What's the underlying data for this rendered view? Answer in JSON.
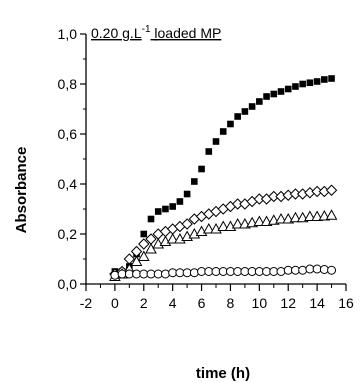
{
  "chart_data": {
    "type": "scatter",
    "title": "0.20 g.L",
    "title_superscript": "-1",
    "title_suffix": " loaded MP",
    "xlabel": "time (h)",
    "ylabel": "Absorbance",
    "xlim": [
      -2,
      16
    ],
    "ylim": [
      0,
      1.0
    ],
    "x_ticks": [
      -2,
      0,
      2,
      4,
      6,
      8,
      10,
      12,
      14,
      16
    ],
    "x_tick_labels": [
      "-2",
      "0",
      "2",
      "4",
      "6",
      "8",
      "10",
      "12",
      "14",
      "16"
    ],
    "y_ticks": [
      0,
      0.2,
      0.4,
      0.6,
      0.8,
      1.0
    ],
    "y_tick_labels": [
      "0,0",
      "0,2",
      "0,4",
      "0,6",
      "0,8",
      "1,0"
    ],
    "grid": false,
    "series": [
      {
        "marker": "filled-square",
        "x": [
          0,
          0.5,
          1,
          1.5,
          2,
          2.5,
          3,
          3.5,
          4,
          4.5,
          5,
          5.5,
          6,
          6.5,
          7,
          7.5,
          8,
          8.5,
          9,
          9.5,
          10,
          10.5,
          11,
          11.5,
          12,
          12.5,
          13,
          13.5,
          14,
          14.5,
          15
        ],
        "y": [
          0.05,
          0.05,
          0.07,
          0.12,
          0.2,
          0.26,
          0.29,
          0.3,
          0.31,
          0.33,
          0.36,
          0.41,
          0.46,
          0.53,
          0.57,
          0.61,
          0.64,
          0.67,
          0.69,
          0.71,
          0.73,
          0.75,
          0.76,
          0.77,
          0.78,
          0.79,
          0.8,
          0.805,
          0.81,
          0.818,
          0.822
        ]
      },
      {
        "marker": "open-diamond",
        "x": [
          0,
          0.5,
          1,
          1.5,
          2,
          2.5,
          3,
          3.5,
          4,
          4.5,
          5,
          5.5,
          6,
          6.5,
          7,
          7.5,
          8,
          8.5,
          9,
          9.5,
          10,
          10.5,
          11,
          11.5,
          12,
          12.5,
          13,
          13.5,
          14,
          14.5,
          15
        ],
        "y": [
          0.04,
          0.05,
          0.1,
          0.13,
          0.16,
          0.18,
          0.2,
          0.21,
          0.22,
          0.23,
          0.24,
          0.26,
          0.27,
          0.28,
          0.29,
          0.3,
          0.31,
          0.32,
          0.32,
          0.33,
          0.34,
          0.34,
          0.35,
          0.35,
          0.355,
          0.36,
          0.36,
          0.365,
          0.37,
          0.37,
          0.375
        ]
      },
      {
        "marker": "open-triangle",
        "x": [
          0,
          0.5,
          1,
          1.5,
          2,
          2.5,
          3,
          3.5,
          4,
          4.5,
          5,
          5.5,
          6,
          6.5,
          7,
          7.5,
          8,
          8.5,
          9,
          9.5,
          10,
          10.5,
          11,
          11.5,
          12,
          12.5,
          13,
          13.5,
          14,
          14.5,
          15
        ],
        "y": [
          0.03,
          0.04,
          0.06,
          0.09,
          0.11,
          0.14,
          0.16,
          0.17,
          0.18,
          0.18,
          0.19,
          0.2,
          0.21,
          0.22,
          0.22,
          0.23,
          0.23,
          0.24,
          0.24,
          0.245,
          0.25,
          0.25,
          0.255,
          0.26,
          0.26,
          0.265,
          0.265,
          0.27,
          0.27,
          0.272,
          0.275
        ]
      },
      {
        "marker": "open-circle",
        "x": [
          0,
          0.5,
          1,
          1.5,
          2,
          2.5,
          3,
          3.5,
          4,
          4.5,
          5,
          5.5,
          6,
          6.5,
          7,
          7.5,
          8,
          8.5,
          9,
          9.5,
          10,
          10.5,
          11,
          11.5,
          12,
          12.5,
          13,
          13.5,
          14,
          14.5,
          15
        ],
        "y": [
          0.035,
          0.04,
          0.04,
          0.04,
          0.04,
          0.04,
          0.04,
          0.04,
          0.045,
          0.045,
          0.045,
          0.045,
          0.05,
          0.05,
          0.05,
          0.05,
          0.05,
          0.05,
          0.05,
          0.05,
          0.05,
          0.05,
          0.05,
          0.05,
          0.055,
          0.055,
          0.055,
          0.06,
          0.06,
          0.058,
          0.055
        ]
      }
    ]
  }
}
